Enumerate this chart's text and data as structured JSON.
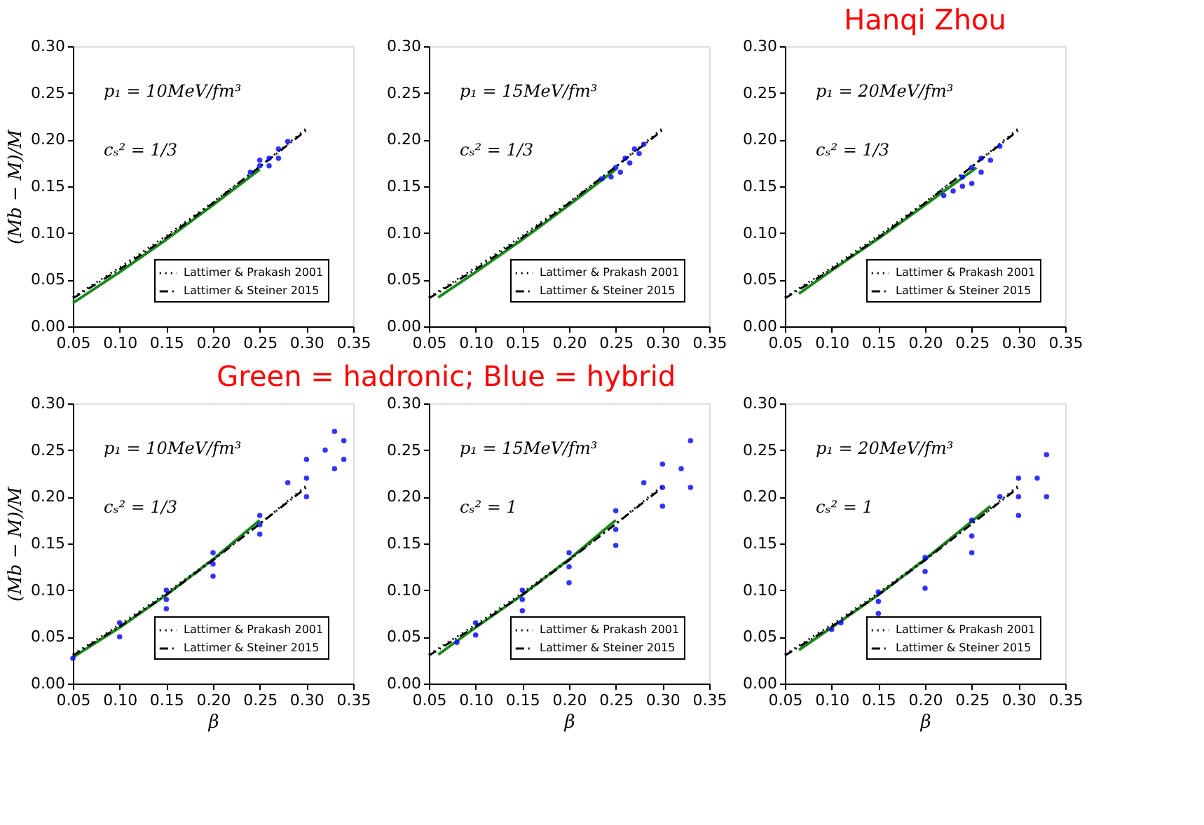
{
  "chart_data": [
    {
      "type": "scatter",
      "ylabel": "(Mb − M)/M",
      "annotations": [
        "p₁ = 10MeV/fm³",
        "cₛ² = 1/3"
      ],
      "xlim": [
        0.05,
        0.35
      ],
      "ylim": [
        0,
        0.3
      ],
      "xticks": [
        0.05,
        {
          "value": 0.1,
          "label": "0.10"
        },
        0.15,
        {
          "value": 0.2,
          "label": "0.20"
        },
        0.25,
        {
          "value": 0.3,
          "label": "0.30"
        },
        0.35
      ],
      "yticks": [
        {
          "value": 0,
          "label": "0.00"
        },
        0.05,
        {
          "value": 0.1,
          "label": "0.10"
        },
        0.15,
        {
          "value": 0.2,
          "label": "0.20"
        },
        0.25,
        {
          "value": 0.3,
          "label": "0.30"
        }
      ],
      "legend": "bottom right",
      "series": [
        {
          "type": "scatter",
          "marker": "circle",
          "color": "#0000ff",
          "x": [
            0.24,
            0.25,
            0.26,
            0.27,
            0.28,
            0.26,
            0.27,
            0.25
          ],
          "values": [
            0.165,
            0.172,
            0.18,
            0.19,
            0.198,
            0.172,
            0.18,
            0.178
          ]
        },
        {
          "type": "line",
          "line_style": "solid",
          "color": "#1a8a1a",
          "x": [
            0.05,
            0.1,
            0.15,
            0.2,
            0.25
          ],
          "values": [
            0.025,
            0.058,
            0.093,
            0.13,
            0.168
          ]
        },
        {
          "type": "line",
          "name": "Lattimer & Prakash 2001",
          "line_style": "dotted",
          "color": "#000000",
          "x": [
            0.05,
            0.1,
            0.15,
            0.2,
            0.25,
            0.3
          ],
          "values": [
            0.031,
            0.063,
            0.097,
            0.133,
            0.171,
            0.212
          ]
        },
        {
          "type": "line",
          "name": "Lattimer & Steiner 2015",
          "line_style": "dashed",
          "color": "#000000",
          "x": [
            0.05,
            0.1,
            0.15,
            0.2,
            0.25,
            0.3
          ],
          "values": [
            0.03,
            0.061,
            0.095,
            0.132,
            0.171,
            0.21
          ]
        }
      ]
    },
    {
      "type": "scatter",
      "annotations": [
        "p₁ = 15MeV/fm³",
        "cₛ² = 1/3"
      ],
      "xlim": [
        0.05,
        0.35
      ],
      "ylim": [
        0,
        0.3
      ],
      "xticks": [
        0.05,
        {
          "value": 0.1,
          "label": "0.10"
        },
        0.15,
        {
          "value": 0.2,
          "label": "0.20"
        },
        0.25,
        {
          "value": 0.3,
          "label": "0.30"
        },
        0.35
      ],
      "yticks": [
        {
          "value": 0,
          "label": "0.00"
        },
        0.05,
        {
          "value": 0.1,
          "label": "0.10"
        },
        0.15,
        {
          "value": 0.2,
          "label": "0.20"
        },
        0.25,
        {
          "value": 0.3,
          "label": "0.30"
        }
      ],
      "legend": "bottom right",
      "series": [
        {
          "type": "scatter",
          "marker": "circle",
          "color": "#0000ff",
          "x": [
            0.235,
            0.245,
            0.255,
            0.265,
            0.275,
            0.28,
            0.25,
            0.26,
            0.27
          ],
          "values": [
            0.158,
            0.16,
            0.165,
            0.175,
            0.185,
            0.195,
            0.17,
            0.18,
            0.19
          ]
        },
        {
          "type": "line",
          "line_style": "solid",
          "color": "#1a8a1a",
          "x": [
            0.06,
            0.1,
            0.15,
            0.2,
            0.25
          ],
          "values": [
            0.031,
            0.058,
            0.093,
            0.13,
            0.168
          ]
        },
        {
          "type": "line",
          "name": "Lattimer & Prakash 2001",
          "line_style": "dotted",
          "color": "#000000",
          "x": [
            0.05,
            0.1,
            0.15,
            0.2,
            0.25,
            0.3
          ],
          "values": [
            0.031,
            0.063,
            0.097,
            0.133,
            0.171,
            0.212
          ]
        },
        {
          "type": "line",
          "name": "Lattimer & Steiner 2015",
          "line_style": "dashed",
          "color": "#000000",
          "x": [
            0.05,
            0.1,
            0.15,
            0.2,
            0.25,
            0.3
          ],
          "values": [
            0.03,
            0.061,
            0.095,
            0.132,
            0.171,
            0.21
          ]
        }
      ]
    },
    {
      "type": "scatter",
      "title": "Hanqi Zhou",
      "annotations": [
        "p₁ = 20MeV/fm³",
        "cₛ² = 1/3"
      ],
      "xlim": [
        0.05,
        0.35
      ],
      "ylim": [
        0,
        0.3
      ],
      "xticks": [
        0.05,
        {
          "value": 0.1,
          "label": "0.10"
        },
        0.15,
        {
          "value": 0.2,
          "label": "0.20"
        },
        0.25,
        {
          "value": 0.3,
          "label": "0.30"
        },
        0.35
      ],
      "yticks": [
        {
          "value": 0,
          "label": "0.00"
        },
        0.05,
        {
          "value": 0.1,
          "label": "0.10"
        },
        0.15,
        {
          "value": 0.2,
          "label": "0.20"
        },
        0.25,
        {
          "value": 0.3,
          "label": "0.30"
        }
      ],
      "legend": "bottom right",
      "series": [
        {
          "type": "scatter",
          "marker": "circle",
          "color": "#0000ff",
          "x": [
            0.22,
            0.23,
            0.24,
            0.25,
            0.26,
            0.27,
            0.28,
            0.25,
            0.26,
            0.24
          ],
          "values": [
            0.14,
            0.145,
            0.15,
            0.153,
            0.165,
            0.178,
            0.193,
            0.17,
            0.18,
            0.16
          ]
        },
        {
          "type": "line",
          "line_style": "solid",
          "color": "#1a8a1a",
          "x": [
            0.065,
            0.1,
            0.15,
            0.2,
            0.255
          ],
          "values": [
            0.035,
            0.06,
            0.094,
            0.13,
            0.17
          ]
        },
        {
          "type": "line",
          "name": "Lattimer & Prakash 2001",
          "line_style": "dotted",
          "color": "#000000",
          "x": [
            0.05,
            0.1,
            0.15,
            0.2,
            0.25,
            0.3
          ],
          "values": [
            0.031,
            0.063,
            0.097,
            0.133,
            0.171,
            0.212
          ]
        },
        {
          "type": "line",
          "name": "Lattimer & Steiner 2015",
          "line_style": "dashed",
          "color": "#000000",
          "x": [
            0.05,
            0.1,
            0.15,
            0.2,
            0.25,
            0.3
          ],
          "values": [
            0.03,
            0.061,
            0.095,
            0.132,
            0.171,
            0.21
          ]
        }
      ]
    },
    {
      "type": "scatter",
      "xlabel": "β",
      "ylabel": "(Mb − M)/M",
      "annotations": [
        "p₁ = 10MeV/fm³",
        "cₛ² = 1/3"
      ],
      "xlim": [
        0.05,
        0.35
      ],
      "ylim": [
        0,
        0.3
      ],
      "xticks": [
        0.05,
        {
          "value": 0.1,
          "label": "0.10"
        },
        0.15,
        {
          "value": 0.2,
          "label": "0.20"
        },
        0.25,
        {
          "value": 0.3,
          "label": "0.30"
        },
        0.35
      ],
      "yticks": [
        {
          "value": 0,
          "label": "0.00"
        },
        0.05,
        {
          "value": 0.1,
          "label": "0.10"
        },
        0.15,
        {
          "value": 0.2,
          "label": "0.20"
        },
        0.25,
        {
          "value": 0.3,
          "label": "0.30"
        }
      ],
      "legend": "bottom right",
      "series": [
        {
          "type": "scatter",
          "marker": "circle",
          "color": "#0000ff",
          "x": [
            0.05,
            0.1,
            0.15,
            0.2,
            0.25,
            0.3,
            0.33,
            0.1,
            0.15,
            0.2,
            0.25,
            0.28,
            0.3,
            0.33,
            0.34,
            0.34,
            0.15,
            0.2,
            0.25,
            0.3,
            0.32
          ],
          "values": [
            0.027,
            0.05,
            0.08,
            0.115,
            0.16,
            0.2,
            0.23,
            0.065,
            0.1,
            0.14,
            0.18,
            0.215,
            0.24,
            0.27,
            0.26,
            0.24,
            0.09,
            0.128,
            0.17,
            0.22,
            0.25
          ]
        },
        {
          "type": "line",
          "line_style": "solid",
          "color": "#1a8a1a",
          "x": [
            0.05,
            0.1,
            0.15,
            0.2,
            0.25
          ],
          "values": [
            0.028,
            0.06,
            0.095,
            0.133,
            0.175
          ]
        },
        {
          "type": "line",
          "name": "Lattimer & Prakash 2001",
          "line_style": "dotted",
          "color": "#000000",
          "x": [
            0.05,
            0.1,
            0.15,
            0.2,
            0.25,
            0.3
          ],
          "values": [
            0.031,
            0.063,
            0.097,
            0.133,
            0.171,
            0.212
          ]
        },
        {
          "type": "line",
          "name": "Lattimer & Steiner 2015",
          "line_style": "dashed",
          "color": "#000000",
          "x": [
            0.05,
            0.1,
            0.15,
            0.2,
            0.25,
            0.3
          ],
          "values": [
            0.03,
            0.061,
            0.095,
            0.132,
            0.171,
            0.21
          ]
        }
      ]
    },
    {
      "type": "scatter",
      "title": "Green = hadronic; Blue = hybrid",
      "xlabel": "β",
      "annotations": [
        "p₁ = 15MeV/fm³",
        "cₛ² = 1"
      ],
      "xlim": [
        0.05,
        0.35
      ],
      "ylim": [
        0,
        0.3
      ],
      "xticks": [
        0.05,
        {
          "value": 0.1,
          "label": "0.10"
        },
        0.15,
        {
          "value": 0.2,
          "label": "0.20"
        },
        0.25,
        {
          "value": 0.3,
          "label": "0.30"
        },
        0.35
      ],
      "yticks": [
        {
          "value": 0,
          "label": "0.00"
        },
        0.05,
        {
          "value": 0.1,
          "label": "0.10"
        },
        0.15,
        {
          "value": 0.2,
          "label": "0.20"
        },
        0.25,
        {
          "value": 0.3,
          "label": "0.30"
        }
      ],
      "legend": "bottom right",
      "series": [
        {
          "type": "scatter",
          "marker": "circle",
          "color": "#0000ff",
          "x": [
            0.08,
            0.1,
            0.15,
            0.2,
            0.25,
            0.3,
            0.33,
            0.1,
            0.15,
            0.2,
            0.25,
            0.28,
            0.3,
            0.33,
            0.15,
            0.2,
            0.25,
            0.3,
            0.32
          ],
          "values": [
            0.044,
            0.052,
            0.078,
            0.108,
            0.148,
            0.19,
            0.21,
            0.065,
            0.1,
            0.14,
            0.185,
            0.215,
            0.235,
            0.26,
            0.09,
            0.125,
            0.165,
            0.21,
            0.23
          ]
        },
        {
          "type": "line",
          "line_style": "solid",
          "color": "#1a8a1a",
          "x": [
            0.06,
            0.1,
            0.15,
            0.2,
            0.25
          ],
          "values": [
            0.031,
            0.06,
            0.095,
            0.133,
            0.175
          ]
        },
        {
          "type": "line",
          "name": "Lattimer & Prakash 2001",
          "line_style": "dotted",
          "color": "#000000",
          "x": [
            0.05,
            0.1,
            0.15,
            0.2,
            0.25,
            0.3
          ],
          "values": [
            0.031,
            0.063,
            0.097,
            0.133,
            0.171,
            0.212
          ]
        },
        {
          "type": "line",
          "name": "Lattimer & Steiner 2015",
          "line_style": "dashed",
          "color": "#000000",
          "x": [
            0.05,
            0.1,
            0.15,
            0.2,
            0.25,
            0.3
          ],
          "values": [
            0.03,
            0.061,
            0.095,
            0.132,
            0.171,
            0.21
          ]
        }
      ]
    },
    {
      "type": "scatter",
      "xlabel": "β",
      "annotations": [
        "p₁ = 20MeV/fm³",
        "cₛ² = 1"
      ],
      "xlim": [
        0.05,
        0.35
      ],
      "ylim": [
        0,
        0.3
      ],
      "xticks": [
        0.05,
        {
          "value": 0.1,
          "label": "0.10"
        },
        0.15,
        {
          "value": 0.2,
          "label": "0.20"
        },
        0.25,
        {
          "value": 0.3,
          "label": "0.30"
        },
        0.35
      ],
      "yticks": [
        {
          "value": 0,
          "label": "0.00"
        },
        0.05,
        {
          "value": 0.1,
          "label": "0.10"
        },
        0.15,
        {
          "value": 0.2,
          "label": "0.20"
        },
        0.25,
        {
          "value": 0.3,
          "label": "0.30"
        }
      ],
      "legend": "bottom right",
      "series": [
        {
          "type": "scatter",
          "marker": "circle",
          "color": "#0000ff",
          "x": [
            0.1,
            0.15,
            0.2,
            0.25,
            0.3,
            0.33,
            0.11,
            0.15,
            0.2,
            0.25,
            0.28,
            0.3,
            0.33,
            0.15,
            0.2,
            0.25,
            0.3,
            0.32
          ],
          "values": [
            0.058,
            0.075,
            0.102,
            0.14,
            0.18,
            0.2,
            0.065,
            0.098,
            0.135,
            0.175,
            0.2,
            0.22,
            0.245,
            0.088,
            0.12,
            0.158,
            0.2,
            0.22
          ]
        },
        {
          "type": "line",
          "line_style": "solid",
          "color": "#1a8a1a",
          "x": [
            0.065,
            0.1,
            0.15,
            0.2,
            0.27
          ],
          "values": [
            0.036,
            0.06,
            0.095,
            0.133,
            0.19
          ]
        },
        {
          "type": "line",
          "name": "Lattimer & Prakash 2001",
          "line_style": "dotted",
          "color": "#000000",
          "x": [
            0.05,
            0.1,
            0.15,
            0.2,
            0.25,
            0.3
          ],
          "values": [
            0.031,
            0.063,
            0.097,
            0.133,
            0.171,
            0.212
          ]
        },
        {
          "type": "line",
          "name": "Lattimer & Steiner 2015",
          "line_style": "dashed",
          "color": "#000000",
          "x": [
            0.05,
            0.1,
            0.15,
            0.2,
            0.25,
            0.3
          ],
          "values": [
            0.03,
            0.061,
            0.095,
            0.132,
            0.171,
            0.21
          ]
        }
      ]
    }
  ]
}
